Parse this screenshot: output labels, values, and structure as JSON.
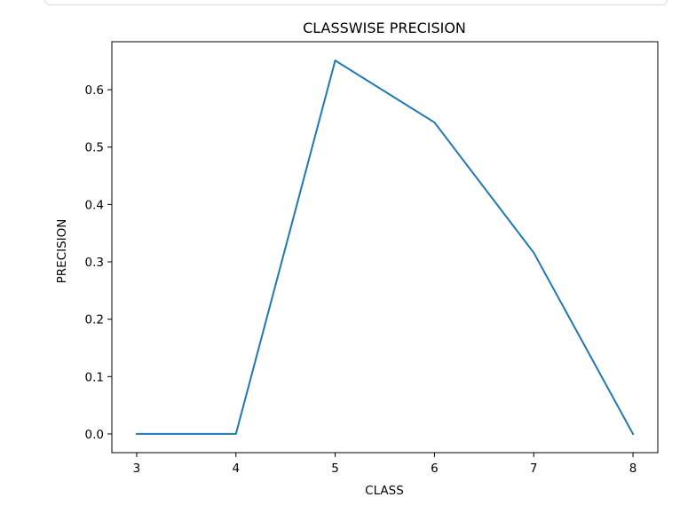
{
  "chart_data": {
    "type": "line",
    "title": "CLASSWISE PRECISION",
    "xlabel": "CLASS",
    "ylabel": "PRECISION",
    "x": [
      3,
      4,
      5,
      6,
      7,
      8
    ],
    "series": [
      {
        "values": [
          0.0,
          0.0,
          0.651,
          0.543,
          0.316,
          0.0
        ]
      }
    ],
    "xlim": [
      2.75,
      8.25
    ],
    "ylim": [
      -0.0326,
      0.6837
    ],
    "xticks": [
      3,
      4,
      5,
      6,
      7,
      8
    ],
    "xtick_labels": [
      "3",
      "4",
      "5",
      "6",
      "7",
      "8"
    ],
    "yticks": [
      0.0,
      0.1,
      0.2,
      0.3,
      0.4,
      0.5,
      0.6
    ],
    "ytick_labels": [
      "0.0",
      "0.1",
      "0.2",
      "0.3",
      "0.4",
      "0.5",
      "0.6"
    ],
    "grid": false,
    "line_color": "#1f77b4"
  }
}
